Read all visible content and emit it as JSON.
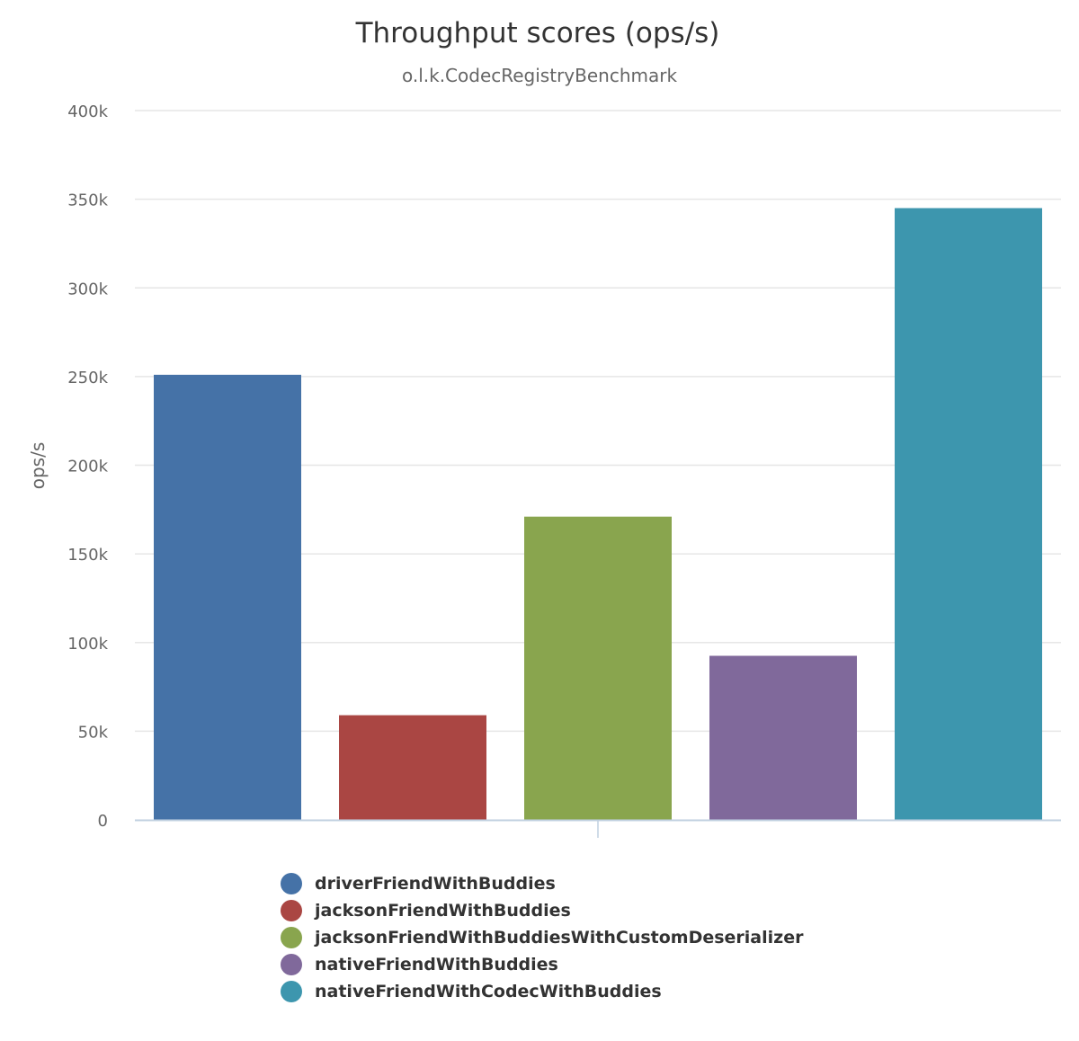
{
  "chart_data": {
    "type": "bar",
    "title": "Throughput scores (ops/s)",
    "subtitle": "o.l.k.CodecRegistryBenchmark",
    "ylabel": "ops/s",
    "xlabel": "",
    "ylim": [
      0,
      400000
    ],
    "yticks": [
      0,
      50000,
      100000,
      150000,
      200000,
      250000,
      300000,
      350000,
      400000
    ],
    "ytick_labels": [
      "0",
      "50k",
      "100k",
      "150k",
      "200k",
      "250k",
      "300k",
      "350k",
      "400k"
    ],
    "grid": true,
    "legend_position": "bottom",
    "series": [
      {
        "name": "driverFriendWithBuddies",
        "value": 251000,
        "color": "#4572a7"
      },
      {
        "name": "jacksonFriendWithBuddies",
        "value": 59000,
        "color": "#aa4643"
      },
      {
        "name": "jacksonFriendWithBuddiesWithCustomDeserializer",
        "value": 171000,
        "color": "#89a54e"
      },
      {
        "name": "nativeFriendWithBuddies",
        "value": 92500,
        "color": "#80699b"
      },
      {
        "name": "nativeFriendWithCodecWithBuddies",
        "value": 345000,
        "color": "#3d96ae"
      }
    ]
  }
}
